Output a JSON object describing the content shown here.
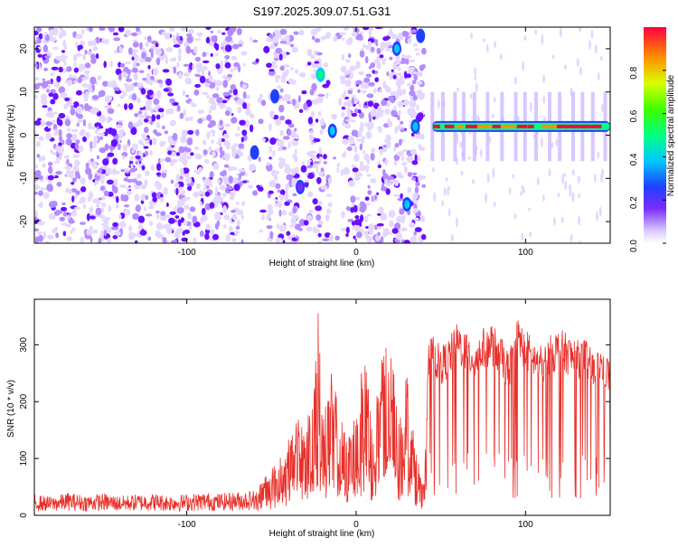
{
  "page_title": "S197.2025.309.07.51.G31",
  "colors": {
    "snr_line": "#e8302a",
    "heatmap_low": "#a070ff",
    "heatmap_mid": "#5b00ff",
    "frame": "#000000"
  },
  "chart_data": [
    {
      "type": "heatmap",
      "title": "S197.2025.309.07.51.G31",
      "xlabel": "Height of straight line (km)",
      "ylabel": "Frequency (Hz)",
      "xlim": [
        -190,
        150
      ],
      "ylim": [
        -25,
        25
      ],
      "xticks": [
        -100,
        0,
        100
      ],
      "xtick_labels": [
        "-100",
        "0",
        "100"
      ],
      "yticks": [
        -20,
        -10,
        0,
        10,
        20
      ],
      "ytick_labels": [
        "-20",
        "-10",
        "0",
        "10",
        "20"
      ],
      "colorbar": {
        "label": "Normalized spectral amplitude",
        "range": [
          0,
          1
        ],
        "ticks": [
          0.0,
          0.2,
          0.4,
          0.6,
          0.8
        ],
        "tick_labels": [
          "0.0",
          "0.2",
          "0.4",
          "0.6",
          "0.8"
        ]
      },
      "features": [
        {
          "x_start": 45,
          "x_end": 150,
          "frequency": 2,
          "amplitude": 0.9
        },
        {
          "x": 35,
          "frequency": 2,
          "amplitude": 0.35
        },
        {
          "x": 38,
          "frequency": 23,
          "amplitude": 0.25
        },
        {
          "x": 24,
          "frequency": 20,
          "amplitude": 0.3
        },
        {
          "x": 30,
          "frequency": -16,
          "amplitude": 0.3
        },
        {
          "x": -21,
          "frequency": 14,
          "amplitude": 0.45
        },
        {
          "x": -14,
          "frequency": 1,
          "amplitude": 0.35
        },
        {
          "x": -48,
          "frequency": 9,
          "amplitude": 0.25
        },
        {
          "x": -60,
          "frequency": -4,
          "amplitude": 0.25
        },
        {
          "x": -33,
          "frequency": -12,
          "amplitude": 0.15
        }
      ],
      "grid": false,
      "legend": "colorbar-right"
    },
    {
      "type": "line",
      "xlabel": "Height of straight line (km)",
      "ylabel": "SNR (10 * v/v)",
      "xlim": [
        -190,
        150
      ],
      "ylim": [
        0,
        380
      ],
      "xticks": [
        -100,
        0,
        100
      ],
      "xtick_labels": [
        "-100",
        "0",
        "100"
      ],
      "yticks": [
        0,
        100,
        200,
        300
      ],
      "ytick_labels": [
        "0",
        "100",
        "200",
        "300"
      ],
      "series": [
        {
          "x": [
            -190,
            -180,
            -170,
            -160,
            -150,
            -140,
            -130,
            -120,
            -110,
            -100,
            -90,
            -80,
            -70,
            -60,
            -55,
            -50,
            -45,
            -40,
            -35,
            -30,
            -25,
            -22,
            -20,
            -15,
            -10,
            -5,
            0,
            5,
            10,
            15,
            20,
            25,
            30,
            35,
            40,
            43,
            45,
            50,
            55,
            60,
            65,
            70,
            75,
            80,
            85,
            90,
            95,
            100,
            105,
            110,
            115,
            120,
            125,
            130,
            135,
            140,
            145,
            150
          ],
          "y": [
            25,
            22,
            27,
            24,
            26,
            23,
            25,
            26,
            24,
            25,
            27,
            26,
            28,
            30,
            60,
            70,
            90,
            120,
            150,
            130,
            200,
            340,
            150,
            230,
            160,
            120,
            180,
            260,
            150,
            240,
            280,
            140,
            230,
            100,
            60,
            280,
            290,
            270,
            285,
            310,
            295,
            280,
            300,
            310,
            290,
            260,
            320,
            300,
            280,
            270,
            290,
            300,
            290,
            280,
            285,
            260,
            270,
            250
          ]
        }
      ],
      "grid": false
    }
  ]
}
